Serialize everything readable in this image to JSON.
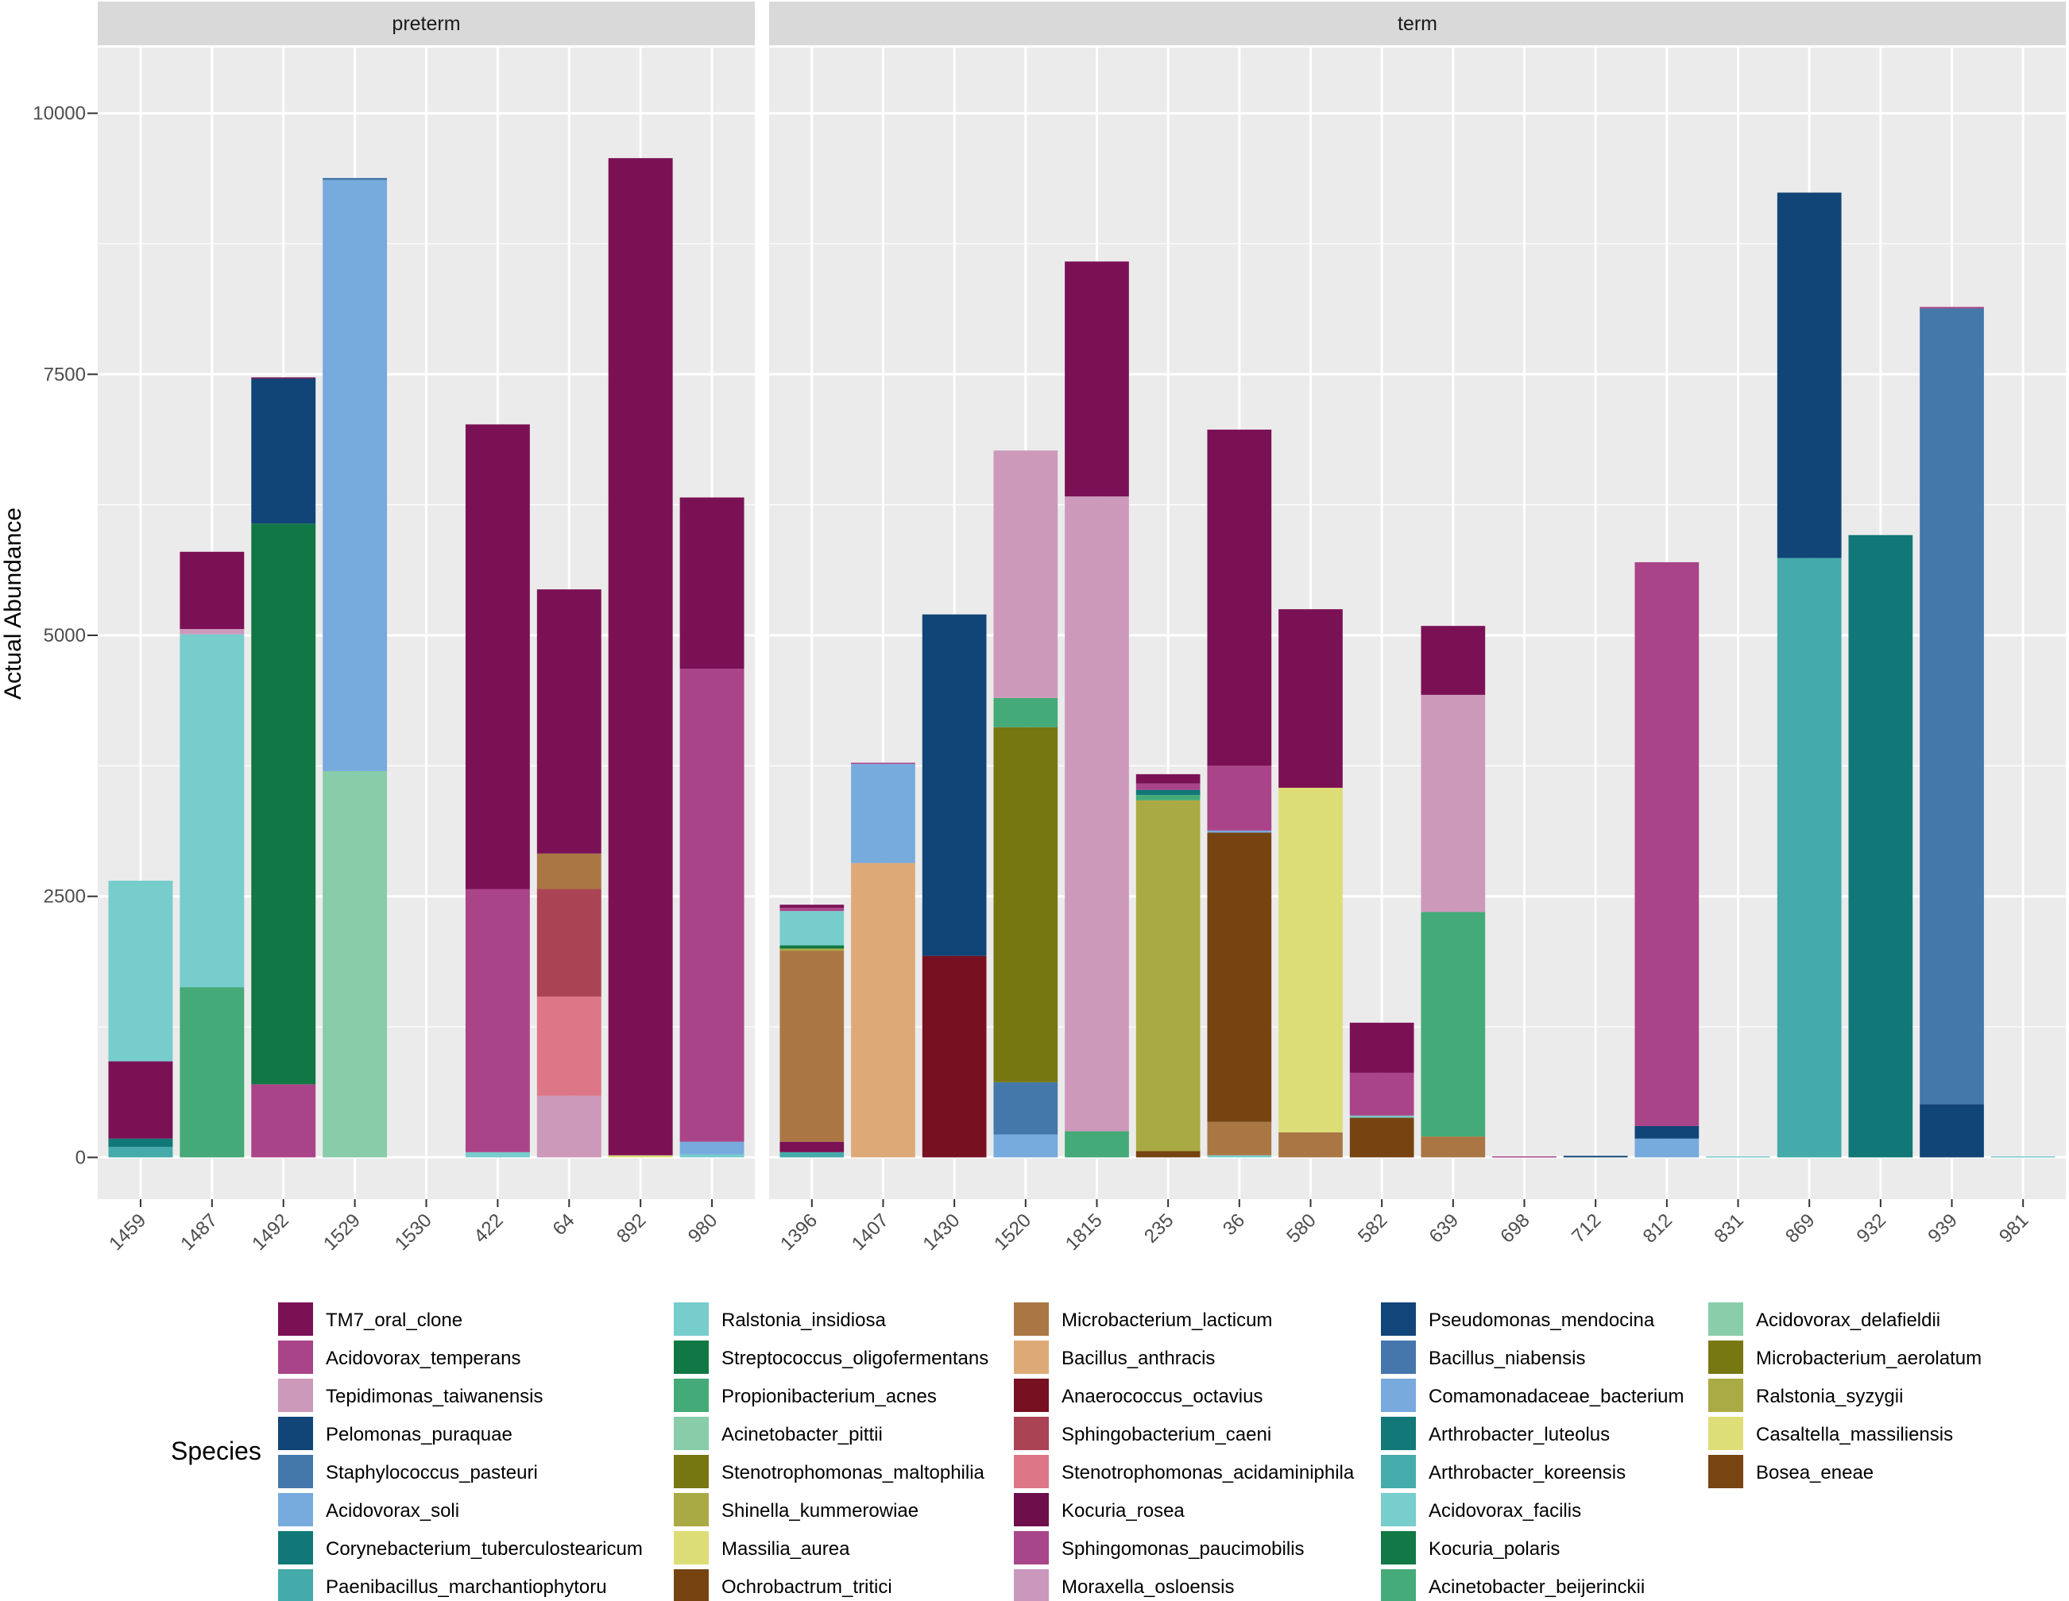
{
  "chart_data": {
    "type": "bar",
    "stacked": true,
    "ylabel": "Actual Abundance",
    "xlabel": "",
    "ylim": [
      -400,
      10400
    ],
    "yticks": [
      0,
      2500,
      5000,
      7500,
      10000
    ],
    "legend_title": "Species",
    "legend_position": "bottom",
    "species": [
      {
        "name": "TM7_oral_clone",
        "color": "#7b1155"
      },
      {
        "name": "Acidovorax_temperans",
        "color": "#aa4488"
      },
      {
        "name": "Tepidimonas_taiwanensis",
        "color": "#cc99bb"
      },
      {
        "name": "Pelomonas_puraquae",
        "color": "#114477"
      },
      {
        "name": "Staphylococcus_pasteuri",
        "color": "#4477aa"
      },
      {
        "name": "Acidovorax_soli",
        "color": "#77aadd"
      },
      {
        "name": "Corynebacterium_tuberculostearicum",
        "color": "#117777"
      },
      {
        "name": "Paenibacillus_marchantiophytoru",
        "color": "#44aaaa"
      },
      {
        "name": "Ralstonia_insidiosa",
        "color": "#77cccc"
      },
      {
        "name": "Streptococcus_oligofermentans",
        "color": "#117744"
      },
      {
        "name": "Propionibacterium_acnes",
        "color": "#44aa77"
      },
      {
        "name": "Acinetobacter_pittii",
        "color": "#88ccaa"
      },
      {
        "name": "Stenotrophomonas_maltophilia",
        "color": "#777711"
      },
      {
        "name": "Shinella_kummerowiae",
        "color": "#aaaa44"
      },
      {
        "name": "Massilia_aurea",
        "color": "#dddd77"
      },
      {
        "name": "Ochrobactrum_tritici",
        "color": "#774411"
      },
      {
        "name": "Microbacterium_lacticum",
        "color": "#aa7744"
      },
      {
        "name": "Bacillus_anthracis",
        "color": "#ddaa77"
      },
      {
        "name": "Anaerococcus_octavius",
        "color": "#771122"
      },
      {
        "name": "Sphingobacterium_caeni",
        "color": "#aa4455"
      },
      {
        "name": "Stenotrophomonas_acidaminiphila",
        "color": "#dd7788"
      },
      {
        "name": "Kocuria_rosea",
        "color": "#6e0f4c"
      },
      {
        "name": "Sphingomonas_paucimobilis",
        "color": "#a8468a"
      },
      {
        "name": "Moraxella_osloensis",
        "color": "#cb98bd"
      },
      {
        "name": "Pseudomonas_mendocina",
        "color": "#12457a"
      },
      {
        "name": "Bacillus_niabensis",
        "color": "#4577ac"
      },
      {
        "name": "Comamonadaceae_bacterium",
        "color": "#78aade"
      },
      {
        "name": "Arthrobacter_luteolus",
        "color": "#127878"
      },
      {
        "name": "Arthrobacter_koreensis",
        "color": "#45abab"
      },
      {
        "name": "Acidovorax_facilis",
        "color": "#78cdcd"
      },
      {
        "name": "Kocuria_polaris",
        "color": "#127845"
      },
      {
        "name": "Acinetobacter_beijerinckii",
        "color": "#45ab78"
      },
      {
        "name": "Acidovorax_delafieldii",
        "color": "#89cdab"
      },
      {
        "name": "Microbacterium_aerolatum",
        "color": "#787812"
      },
      {
        "name": "Ralstonia_syzygii",
        "color": "#abab45"
      },
      {
        "name": "Casaltella_massiliensis",
        "color": "#dede78"
      },
      {
        "name": "Bosea_eneae",
        "color": "#784512"
      }
    ],
    "facets": [
      {
        "name": "preterm",
        "samples": [
          {
            "sample": "1459",
            "segments": [
              {
                "species": "Paenibacillus_marchantiophytoru",
                "value": 100
              },
              {
                "species": "Corynebacterium_tuberculostearicum",
                "value": 80
              },
              {
                "species": "TM7_oral_clone",
                "value": 740
              },
              {
                "species": "Ralstonia_insidiosa",
                "value": 1730
              }
            ]
          },
          {
            "sample": "1487",
            "segments": [
              {
                "species": "Propionibacterium_acnes",
                "value": 1630
              },
              {
                "species": "Ralstonia_insidiosa",
                "value": 3380
              },
              {
                "species": "Tepidimonas_taiwanensis",
                "value": 50
              },
              {
                "species": "TM7_oral_clone",
                "value": 740
              }
            ]
          },
          {
            "sample": "1492",
            "segments": [
              {
                "species": "Acidovorax_temperans",
                "value": 700
              },
              {
                "species": "Streptococcus_oligofermentans",
                "value": 5370
              },
              {
                "species": "Pelomonas_puraquae",
                "value": 1390
              },
              {
                "species": "TM7_oral_clone",
                "value": 10
              }
            ]
          },
          {
            "sample": "1529",
            "segments": [
              {
                "species": "Acinetobacter_pittii",
                "value": 3700
              },
              {
                "species": "Acidovorax_soli",
                "value": 5660
              },
              {
                "species": "Staphylococcus_pasteuri",
                "value": 20
              }
            ]
          },
          {
            "sample": "1530",
            "segments": []
          },
          {
            "sample": "422",
            "segments": [
              {
                "species": "Ralstonia_insidiosa",
                "value": 50
              },
              {
                "species": "Acidovorax_temperans",
                "value": 2520
              },
              {
                "species": "TM7_oral_clone",
                "value": 4450
              }
            ]
          },
          {
            "sample": "64",
            "segments": [
              {
                "species": "Tepidimonas_taiwanensis",
                "value": 590
              },
              {
                "species": "Stenotrophomonas_acidaminiphila",
                "value": 950
              },
              {
                "species": "Sphingobacterium_caeni",
                "value": 1030
              },
              {
                "species": "Microbacterium_lacticum",
                "value": 340
              },
              {
                "species": "TM7_oral_clone",
                "value": 2530
              }
            ]
          },
          {
            "sample": "892",
            "segments": [
              {
                "species": "Massilia_aurea",
                "value": 20
              },
              {
                "species": "TM7_oral_clone",
                "value": 9550
              }
            ]
          },
          {
            "sample": "980",
            "segments": [
              {
                "species": "Ralstonia_insidiosa",
                "value": 30
              },
              {
                "species": "Acidovorax_soli",
                "value": 120
              },
              {
                "species": "Acidovorax_temperans",
                "value": 4530
              },
              {
                "species": "TM7_oral_clone",
                "value": 1640
              }
            ]
          }
        ]
      },
      {
        "name": "term",
        "samples": [
          {
            "sample": "1396",
            "segments": [
              {
                "species": "Paenibacillus_marchantiophytoru",
                "value": 50
              },
              {
                "species": "TM7_oral_clone",
                "value": 100
              },
              {
                "species": "Microbacterium_lacticum",
                "value": 1830
              },
              {
                "species": "Shinella_kummerowiae",
                "value": 20
              },
              {
                "species": "Streptococcus_oligofermentans",
                "value": 30
              },
              {
                "species": "Ralstonia_insidiosa",
                "value": 330
              },
              {
                "species": "Acidovorax_temperans",
                "value": 30
              },
              {
                "species": "TM7_oral_clone",
                "value": 30
              }
            ]
          },
          {
            "sample": "1407",
            "segments": [
              {
                "species": "Bacillus_anthracis",
                "value": 2820
              },
              {
                "species": "Acidovorax_soli",
                "value": 950
              },
              {
                "species": "Acidovorax_temperans",
                "value": 10
              }
            ]
          },
          {
            "sample": "1430",
            "segments": [
              {
                "species": "Anaerococcus_octavius",
                "value": 1930
              },
              {
                "species": "Pelomonas_puraquae",
                "value": 3270
              }
            ]
          },
          {
            "sample": "1520",
            "segments": [
              {
                "species": "Acidovorax_soli",
                "value": 220
              },
              {
                "species": "Staphylococcus_pasteuri",
                "value": 500
              },
              {
                "species": "Stenotrophomonas_maltophilia",
                "value": 3400
              },
              {
                "species": "Propionibacterium_acnes",
                "value": 280
              },
              {
                "species": "Tepidimonas_taiwanensis",
                "value": 2370
              }
            ]
          },
          {
            "sample": "1815",
            "segments": [
              {
                "species": "Propionibacterium_acnes",
                "value": 250
              },
              {
                "species": "Tepidimonas_taiwanensis",
                "value": 6080
              },
              {
                "species": "TM7_oral_clone",
                "value": 2250
              }
            ]
          },
          {
            "sample": "235",
            "segments": [
              {
                "species": "Ochrobactrum_tritici",
                "value": 60
              },
              {
                "species": "Shinella_kummerowiae",
                "value": 3360
              },
              {
                "species": "Propionibacterium_acnes",
                "value": 50
              },
              {
                "species": "Corynebacterium_tuberculostearicum",
                "value": 50
              },
              {
                "species": "Acidovorax_temperans",
                "value": 60
              },
              {
                "species": "TM7_oral_clone",
                "value": 90
              }
            ]
          },
          {
            "sample": "36",
            "segments": [
              {
                "species": "Ralstonia_insidiosa",
                "value": 20
              },
              {
                "species": "Microbacterium_lacticum",
                "value": 320
              },
              {
                "species": "Ochrobactrum_tritici",
                "value": 2770
              },
              {
                "species": "Acidovorax_soli",
                "value": 20
              },
              {
                "species": "Acidovorax_temperans",
                "value": 620
              },
              {
                "species": "TM7_oral_clone",
                "value": 3220
              }
            ]
          },
          {
            "sample": "580",
            "segments": [
              {
                "species": "Microbacterium_lacticum",
                "value": 240
              },
              {
                "species": "Massilia_aurea",
                "value": 3300
              },
              {
                "species": "TM7_oral_clone",
                "value": 1710
              }
            ]
          },
          {
            "sample": "582",
            "segments": [
              {
                "species": "Ochrobactrum_tritici",
                "value": 380
              },
              {
                "species": "Ralstonia_insidiosa",
                "value": 20
              },
              {
                "species": "Acidovorax_temperans",
                "value": 410
              },
              {
                "species": "TM7_oral_clone",
                "value": 480
              }
            ]
          },
          {
            "sample": "639",
            "segments": [
              {
                "species": "Microbacterium_lacticum",
                "value": 200
              },
              {
                "species": "Propionibacterium_acnes",
                "value": 2150
              },
              {
                "species": "Tepidimonas_taiwanensis",
                "value": 2080
              },
              {
                "species": "TM7_oral_clone",
                "value": 660
              }
            ]
          },
          {
            "sample": "698",
            "segments": [
              {
                "species": "Acidovorax_temperans",
                "value": 10
              }
            ]
          },
          {
            "sample": "712",
            "segments": [
              {
                "species": "Pelomonas_puraquae",
                "value": 15
              }
            ]
          },
          {
            "sample": "812",
            "segments": [
              {
                "species": "Acidovorax_soli",
                "value": 180
              },
              {
                "species": "Pelomonas_puraquae",
                "value": 120
              },
              {
                "species": "Acidovorax_temperans",
                "value": 5400
              }
            ]
          },
          {
            "sample": "831",
            "segments": [
              {
                "species": "Ralstonia_insidiosa",
                "value": 10
              }
            ]
          },
          {
            "sample": "869",
            "segments": [
              {
                "species": "Paenibacillus_marchantiophytoru",
                "value": 5740
              },
              {
                "species": "Pelomonas_puraquae",
                "value": 3500
              }
            ]
          },
          {
            "sample": "932",
            "segments": [
              {
                "species": "Corynebacterium_tuberculostearicum",
                "value": 5960
              }
            ]
          },
          {
            "sample": "939",
            "segments": [
              {
                "species": "Pelomonas_puraquae",
                "value": 510
              },
              {
                "species": "Staphylococcus_pasteuri",
                "value": 7620
              },
              {
                "species": "Acidovorax_temperans",
                "value": 15
              }
            ]
          },
          {
            "sample": "981",
            "segments": [
              {
                "species": "Ralstonia_insidiosa",
                "value": 10
              }
            ]
          }
        ]
      }
    ]
  }
}
